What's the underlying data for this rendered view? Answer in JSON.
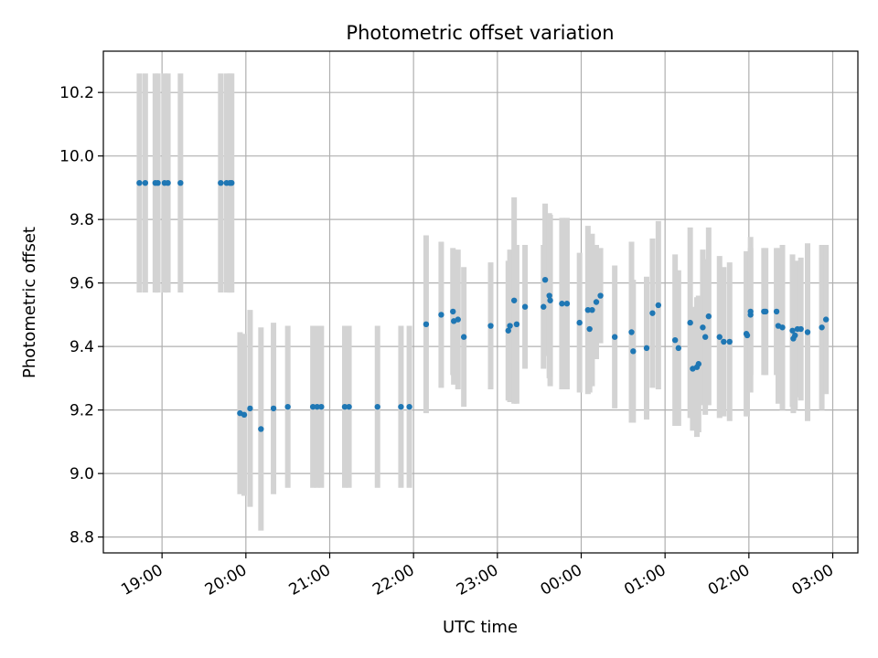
{
  "chart_data": {
    "type": "scatter",
    "title": "Photometric offset variation",
    "xlabel": "UTC time",
    "ylabel": "Photometric offset",
    "x_unit": "UTC time, hours of night (24 = 00:00 next day)",
    "xlim": [
      18.3,
      27.3
    ],
    "ylim": [
      8.75,
      10.33
    ],
    "x_ticks": [
      19,
      20,
      21,
      22,
      23,
      24,
      25,
      26,
      27
    ],
    "x_tick_labels": [
      "19:00",
      "20:00",
      "21:00",
      "22:00",
      "23:00",
      "00:00",
      "01:00",
      "02:00",
      "03:00"
    ],
    "y_ticks": [
      8.8,
      9.0,
      9.2,
      9.4,
      9.6,
      9.8,
      10.0,
      10.2
    ],
    "y_tick_labels": [
      "8.8",
      "9.0",
      "9.2",
      "9.4",
      "9.6",
      "9.8",
      "10.0",
      "10.2"
    ],
    "grid": true,
    "colors": {
      "points": "#1f77b4",
      "error_bars": "#d3d3d3",
      "grid": "#b0b0b0"
    },
    "series": [
      {
        "points": [
          [
            18.73,
            9.915,
            0.345
          ],
          [
            18.8,
            9.915,
            0.345
          ],
          [
            18.92,
            9.915,
            0.345
          ],
          [
            18.95,
            9.915,
            0.345
          ],
          [
            19.03,
            9.915,
            0.345
          ],
          [
            19.07,
            9.915,
            0.345
          ],
          [
            19.22,
            9.915,
            0.345
          ],
          [
            19.7,
            9.915,
            0.345
          ],
          [
            19.77,
            9.915,
            0.345
          ],
          [
            19.81,
            9.915,
            0.345
          ],
          [
            19.83,
            9.915,
            0.345
          ],
          [
            19.93,
            9.19,
            0.255
          ],
          [
            19.98,
            9.185,
            0.255
          ],
          [
            20.05,
            9.205,
            0.31
          ],
          [
            20.18,
            9.14,
            0.32
          ],
          [
            20.33,
            9.205,
            0.27
          ],
          [
            20.5,
            9.21,
            0.255
          ],
          [
            20.8,
            9.21,
            0.255
          ],
          [
            20.85,
            9.21,
            0.255
          ],
          [
            20.9,
            9.21,
            0.255
          ],
          [
            21.18,
            9.21,
            0.255
          ],
          [
            21.23,
            9.21,
            0.255
          ],
          [
            21.57,
            9.21,
            0.255
          ],
          [
            21.85,
            9.21,
            0.255
          ],
          [
            21.95,
            9.21,
            0.255
          ],
          [
            22.15,
            9.47,
            0.28
          ],
          [
            22.33,
            9.5,
            0.23
          ],
          [
            22.47,
            9.51,
            0.2
          ],
          [
            22.48,
            9.48,
            0.2
          ],
          [
            22.53,
            9.485,
            0.22
          ],
          [
            22.6,
            9.43,
            0.22
          ],
          [
            22.92,
            9.465,
            0.2
          ],
          [
            23.13,
            9.45,
            0.22
          ],
          [
            23.15,
            9.465,
            0.24
          ],
          [
            23.2,
            9.545,
            0.325
          ],
          [
            23.23,
            9.47,
            0.25
          ],
          [
            23.33,
            9.525,
            0.195
          ],
          [
            23.55,
            9.525,
            0.195
          ],
          [
            23.57,
            9.61,
            0.24
          ],
          [
            23.63,
            9.545,
            0.27
          ],
          [
            23.62,
            9.56,
            0.26
          ],
          [
            23.77,
            9.535,
            0.27
          ],
          [
            23.83,
            9.535,
            0.27
          ],
          [
            23.98,
            9.475,
            0.22
          ],
          [
            24.08,
            9.515,
            0.265
          ],
          [
            24.1,
            9.455,
            0.2
          ],
          [
            24.13,
            9.515,
            0.24
          ],
          [
            24.18,
            9.54,
            0.18
          ],
          [
            24.23,
            9.56,
            0.15
          ],
          [
            24.4,
            9.43,
            0.225
          ],
          [
            24.6,
            9.445,
            0.285
          ],
          [
            24.62,
            9.385,
            0.225
          ],
          [
            24.78,
            9.395,
            0.225
          ],
          [
            24.85,
            9.505,
            0.235
          ],
          [
            24.92,
            9.53,
            0.265
          ],
          [
            25.12,
            9.42,
            0.27
          ],
          [
            25.16,
            9.395,
            0.245
          ],
          [
            25.3,
            9.475,
            0.3
          ],
          [
            25.33,
            9.33,
            0.195
          ],
          [
            25.38,
            9.335,
            0.22
          ],
          [
            25.4,
            9.345,
            0.215
          ],
          [
            25.45,
            9.46,
            0.245
          ],
          [
            25.48,
            9.43,
            0.245
          ],
          [
            25.52,
            9.495,
            0.28
          ],
          [
            25.65,
            9.43,
            0.255
          ],
          [
            25.7,
            9.415,
            0.235
          ],
          [
            25.77,
            9.415,
            0.25
          ],
          [
            25.97,
            9.44,
            0.26
          ],
          [
            25.98,
            9.435,
            0.255
          ],
          [
            26.02,
            9.5,
            0.245
          ],
          [
            26.02,
            9.51,
            0.2
          ],
          [
            26.18,
            9.51,
            0.2
          ],
          [
            26.2,
            9.51,
            0.2
          ],
          [
            26.33,
            9.51,
            0.2
          ],
          [
            26.35,
            9.465,
            0.245
          ],
          [
            26.4,
            9.46,
            0.26
          ],
          [
            26.52,
            9.45,
            0.24
          ],
          [
            26.53,
            9.425,
            0.235
          ],
          [
            26.55,
            9.435,
            0.235
          ],
          [
            26.58,
            9.455,
            0.215
          ],
          [
            26.62,
            9.455,
            0.225
          ],
          [
            26.7,
            9.445,
            0.28
          ],
          [
            26.87,
            9.46,
            0.26
          ],
          [
            26.92,
            9.485,
            0.235
          ]
        ]
      }
    ]
  }
}
